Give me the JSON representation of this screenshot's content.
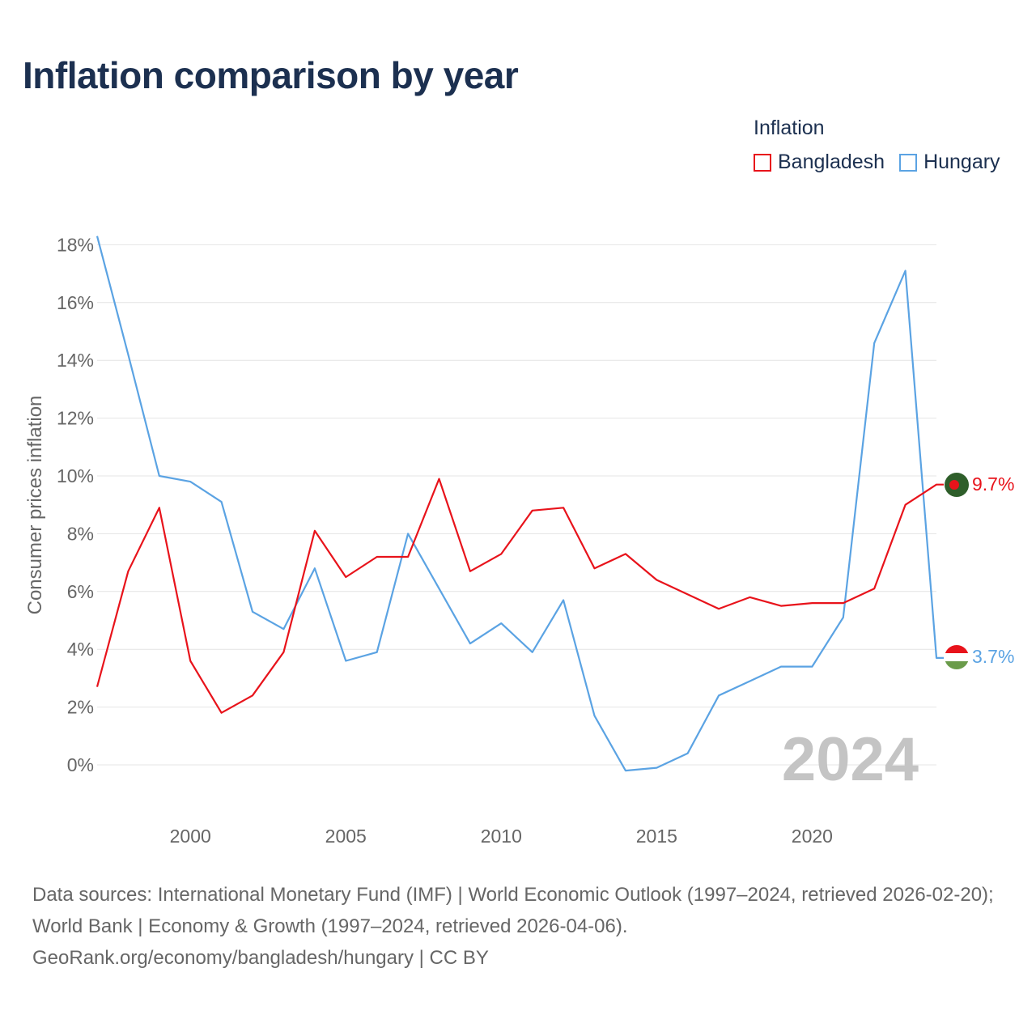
{
  "title": "Inflation comparison by year",
  "legend": {
    "title": "Inflation",
    "items": [
      {
        "label": "Bangladesh",
        "color": "#e8131b"
      },
      {
        "label": "Hungary",
        "color": "#5ba3e3"
      }
    ]
  },
  "chart_data": {
    "type": "line",
    "title": "Inflation comparison by year",
    "ylabel": "Consumer prices inflation",
    "xlabel": "",
    "x": [
      1997,
      1998,
      1999,
      2000,
      2001,
      2002,
      2003,
      2004,
      2005,
      2006,
      2007,
      2008,
      2009,
      2010,
      2011,
      2012,
      2013,
      2014,
      2015,
      2016,
      2017,
      2018,
      2019,
      2020,
      2021,
      2022,
      2023,
      2024
    ],
    "xlim": [
      1997,
      2024
    ],
    "x_ticks": [
      2000,
      2005,
      2010,
      2015,
      2020
    ],
    "ylim": [
      -1,
      18.5
    ],
    "y_ticks": [
      0,
      2,
      4,
      6,
      8,
      10,
      12,
      14,
      16,
      18
    ],
    "y_tick_labels": [
      "0%",
      "2%",
      "4%",
      "6%",
      "8%",
      "10%",
      "12%",
      "14%",
      "16%",
      "18%"
    ],
    "series": [
      {
        "name": "Bangladesh",
        "color": "#e8131b",
        "values": [
          2.7,
          6.7,
          8.9,
          3.6,
          1.8,
          2.4,
          3.9,
          8.1,
          6.5,
          7.2,
          7.2,
          9.9,
          6.7,
          7.3,
          8.8,
          8.9,
          6.8,
          7.3,
          6.4,
          5.9,
          5.4,
          5.8,
          5.5,
          5.6,
          5.6,
          6.1,
          9.0,
          9.7
        ],
        "end_label": "9.7%"
      },
      {
        "name": "Hungary",
        "color": "#5ba3e3",
        "values": [
          18.3,
          14.2,
          10.0,
          9.8,
          9.1,
          5.3,
          4.7,
          6.8,
          3.6,
          3.9,
          8.0,
          6.1,
          4.2,
          4.9,
          3.9,
          5.7,
          1.7,
          -0.2,
          -0.1,
          0.4,
          2.4,
          2.9,
          3.4,
          3.4,
          5.1,
          14.6,
          17.1,
          3.7
        ],
        "end_label": "3.7%"
      }
    ],
    "year_label": "2024",
    "grid": true
  },
  "sources": {
    "text": "Data sources: International Monetary Fund (IMF) | World Economic Outlook (1997–2024, retrieved 2026-02-20); World Bank | Economy & Growth (1997–2024, retrieved 2026-04-06).",
    "site": "GeoRank.org/economy/bangladesh/hungary | CC BY"
  }
}
